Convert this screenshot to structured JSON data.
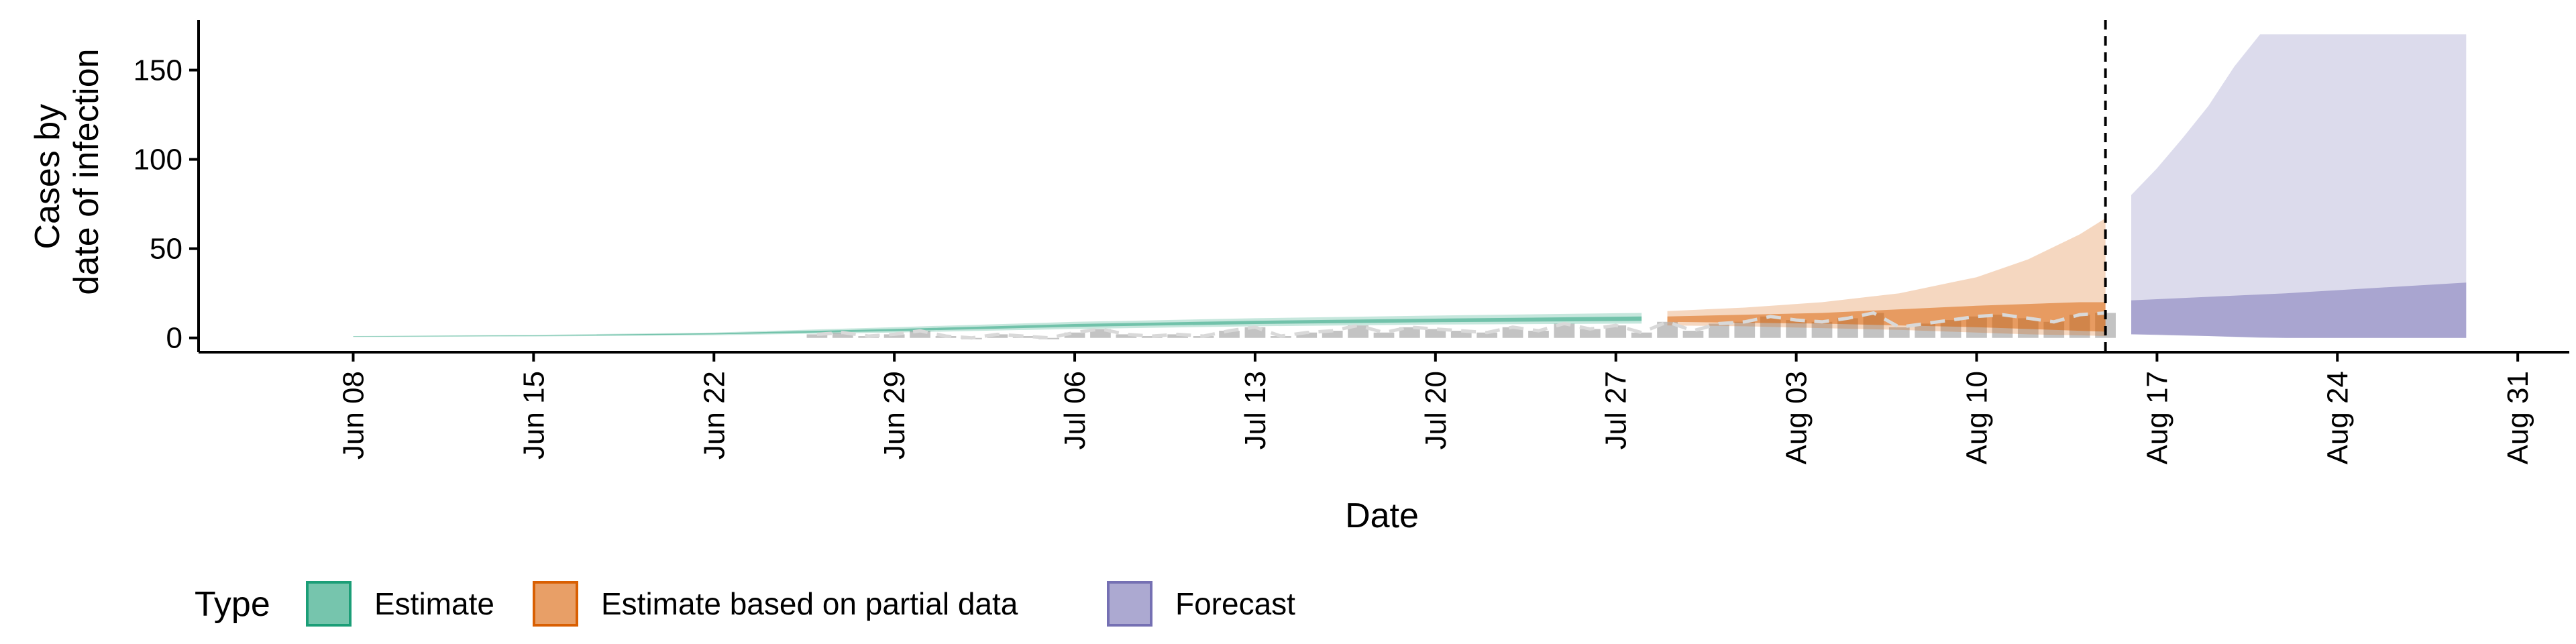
{
  "colors": {
    "estimate": "#1b9e77",
    "estimate_partial": "#d95f02",
    "forecast": "#7570b3",
    "observed_bar": "#bdbdbd",
    "observed_line": "#d9d9d9"
  },
  "chart_data": {
    "type": "area",
    "title": "",
    "xlabel": "Date",
    "ylabel_lines": [
      "Cases by",
      "date of infection"
    ],
    "ylim": [
      -8,
      178
    ],
    "yticks": [
      0,
      50,
      100,
      150
    ],
    "xlim": [
      "2020-06-02",
      "2020-09-02"
    ],
    "xticks": [
      {
        "date": "2020-06-08",
        "label": "Jun 08"
      },
      {
        "date": "2020-06-15",
        "label": "Jun 15"
      },
      {
        "date": "2020-06-22",
        "label": "Jun 22"
      },
      {
        "date": "2020-06-29",
        "label": "Jun 29"
      },
      {
        "date": "2020-07-06",
        "label": "Jul 06"
      },
      {
        "date": "2020-07-13",
        "label": "Jul 13"
      },
      {
        "date": "2020-07-20",
        "label": "Jul 20"
      },
      {
        "date": "2020-07-27",
        "label": "Jul 27"
      },
      {
        "date": "2020-08-03",
        "label": "Aug 03"
      },
      {
        "date": "2020-08-10",
        "label": "Aug 10"
      },
      {
        "date": "2020-08-17",
        "label": "Aug 17"
      },
      {
        "date": "2020-08-24",
        "label": "Aug 24"
      },
      {
        "date": "2020-08-31",
        "label": "Aug 31"
      }
    ],
    "vline_date": "2020-08-15",
    "legend": {
      "title": "Type",
      "position": "bottom",
      "items": [
        {
          "key": "estimate",
          "label": "Estimate"
        },
        {
          "key": "estimate_partial",
          "label": "Estimate based on partial data"
        },
        {
          "key": "forecast",
          "label": "Forecast"
        }
      ]
    },
    "series": [
      {
        "key": "estimate",
        "outer": {
          "x": [
            "2020-06-08",
            "2020-06-15",
            "2020-06-22",
            "2020-06-29",
            "2020-07-06",
            "2020-07-13",
            "2020-07-20",
            "2020-07-28"
          ],
          "lower": [
            0.5,
            0.8,
            1.5,
            3,
            5,
            6.5,
            7.5,
            8
          ],
          "upper": [
            1,
            1.7,
            3,
            6,
            9,
            11,
            12.5,
            14
          ]
        },
        "inner": {
          "x": [
            "2020-06-08",
            "2020-06-15",
            "2020-06-22",
            "2020-06-29",
            "2020-07-06",
            "2020-07-13",
            "2020-07-20",
            "2020-07-28"
          ],
          "lower": [
            0.7,
            1.1,
            2,
            3.8,
            6.2,
            7.8,
            8.8,
            9.5
          ],
          "upper": [
            0.9,
            1.4,
            2.6,
            5,
            7.8,
            9.6,
            10.8,
            12
          ]
        }
      },
      {
        "key": "estimate_partial",
        "outer": {
          "x": [
            "2020-07-29",
            "2020-08-01",
            "2020-08-04",
            "2020-08-07",
            "2020-08-10",
            "2020-08-12",
            "2020-08-14",
            "2020-08-15"
          ],
          "lower": [
            7,
            6.5,
            5.5,
            4.5,
            3,
            2,
            1.5,
            1
          ],
          "upper": [
            15,
            17,
            20,
            25,
            34,
            44,
            58,
            67
          ]
        },
        "inner": {
          "x": [
            "2020-07-29",
            "2020-08-01",
            "2020-08-04",
            "2020-08-07",
            "2020-08-10",
            "2020-08-12",
            "2020-08-14",
            "2020-08-15"
          ],
          "lower": [
            9,
            8.5,
            8,
            7,
            6,
            5,
            4,
            3.5
          ],
          "upper": [
            12,
            13,
            14,
            16,
            18,
            19,
            20,
            20
          ]
        }
      },
      {
        "key": "forecast",
        "outer": {
          "x": [
            "2020-08-16",
            "2020-08-17",
            "2020-08-18",
            "2020-08-19",
            "2020-08-20",
            "2020-08-21",
            "2020-08-22",
            "2020-08-29"
          ],
          "lower": [
            2,
            2,
            1.5,
            1,
            0.5,
            0,
            0,
            0
          ],
          "upper": [
            80,
            95,
            112,
            130,
            152,
            170,
            170,
            170
          ]
        },
        "inner": {
          "x": [
            "2020-08-16",
            "2020-08-22",
            "2020-08-29"
          ],
          "lower": [
            2,
            0,
            0
          ],
          "upper": [
            21,
            25,
            31
          ]
        }
      }
    ],
    "observed": {
      "x": [
        "2020-06-26",
        "2020-06-27",
        "2020-06-28",
        "2020-06-29",
        "2020-06-30",
        "2020-07-01",
        "2020-07-02",
        "2020-07-03",
        "2020-07-04",
        "2020-07-05",
        "2020-07-06",
        "2020-07-07",
        "2020-07-08",
        "2020-07-09",
        "2020-07-10",
        "2020-07-11",
        "2020-07-12",
        "2020-07-13",
        "2020-07-14",
        "2020-07-15",
        "2020-07-16",
        "2020-07-17",
        "2020-07-18",
        "2020-07-19",
        "2020-07-20",
        "2020-07-21",
        "2020-07-22",
        "2020-07-23",
        "2020-07-24",
        "2020-07-25",
        "2020-07-26",
        "2020-07-27",
        "2020-07-28",
        "2020-07-29",
        "2020-07-30",
        "2020-07-31",
        "2020-08-01",
        "2020-08-02",
        "2020-08-03",
        "2020-08-04",
        "2020-08-05",
        "2020-08-06",
        "2020-08-07",
        "2020-08-08",
        "2020-08-09",
        "2020-08-10",
        "2020-08-11",
        "2020-08-12",
        "2020-08-13",
        "2020-08-14",
        "2020-08-15"
      ],
      "y": [
        2,
        3,
        1,
        2,
        4,
        1,
        0,
        2,
        1,
        0,
        3,
        5,
        2,
        1,
        2,
        1,
        4,
        6,
        1,
        3,
        4,
        7,
        3,
        6,
        5,
        4,
        3,
        6,
        4,
        8,
        5,
        7,
        3,
        9,
        4,
        8,
        9,
        12,
        10,
        9,
        11,
        14,
        6,
        8,
        10,
        12,
        13,
        11,
        9,
        13,
        14
      ]
    }
  }
}
